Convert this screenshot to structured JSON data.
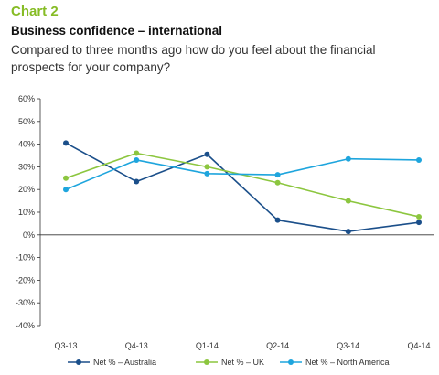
{
  "header": {
    "chart_label": "Chart 2",
    "title": "Business confidence – international",
    "subtitle": "Compared to three months ago how do you feel about the financial prospects for your company?"
  },
  "chart_data": {
    "type": "line",
    "title": "Business confidence – international",
    "xlabel": "",
    "ylabel": "",
    "categories": [
      "Q3-13",
      "Q4-13",
      "Q1-14",
      "Q2-14",
      "Q3-14",
      "Q4-14"
    ],
    "ylim": [
      -40,
      60
    ],
    "yticks": [
      60,
      50,
      40,
      30,
      20,
      10,
      0,
      -10,
      -20,
      -30,
      -40
    ],
    "ytick_labels": [
      "60%",
      "50%",
      "40%",
      "30%",
      "20%",
      "10%",
      "0%",
      "-10%",
      "-20%",
      "-30%",
      "-40%"
    ],
    "grid": false,
    "legend_position": "bottom",
    "series": [
      {
        "name": "Net % – Australia",
        "color": "#1b4f8a",
        "values": [
          40.5,
          23.5,
          35.5,
          6.5,
          1.5,
          5.5
        ]
      },
      {
        "name": "Net % – UK",
        "color": "#8cc63f",
        "values": [
          25,
          36,
          30,
          23,
          15,
          8
        ]
      },
      {
        "name": "Net % – North America",
        "color": "#1ea5dd",
        "values": [
          20,
          33,
          27,
          26.5,
          33.5,
          33
        ]
      }
    ]
  }
}
